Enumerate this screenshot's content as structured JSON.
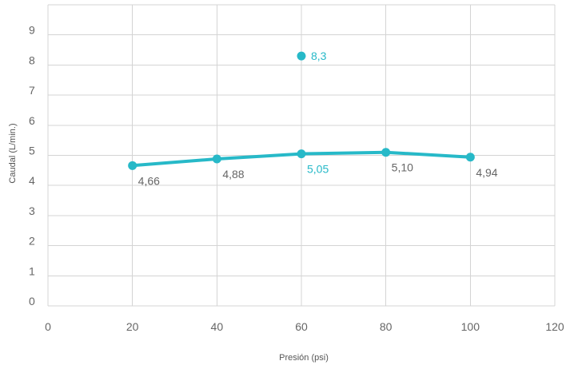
{
  "chart_data": {
    "type": "line",
    "title": "",
    "xlabel": "Presión (psi)",
    "ylabel": "Caudal (L/min.)",
    "xlim": [
      0,
      120
    ],
    "ylim": [
      0,
      10
    ],
    "x_ticks": [
      0,
      20,
      40,
      60,
      80,
      100,
      120
    ],
    "y_ticks": [
      0,
      1,
      2,
      3,
      4,
      5,
      6,
      7,
      8,
      9
    ],
    "x_tick_labels": [
      "0",
      "20",
      "40",
      "60",
      "80",
      "100",
      "120"
    ],
    "y_tick_labels": [
      "0",
      "1",
      "2",
      "3",
      "4",
      "5",
      "6",
      "7",
      "8",
      "9"
    ],
    "grid": true,
    "series": [
      {
        "type": "line",
        "color": "#27b9c8",
        "label_color": "#666666",
        "points": [
          {
            "x": 20,
            "y": 4.66,
            "label": "4,66"
          },
          {
            "x": 40,
            "y": 4.88,
            "label": "4,88"
          },
          {
            "x": 60,
            "y": 5.05,
            "label": "5,05",
            "label_color": "#27b9c8"
          },
          {
            "x": 80,
            "y": 5.1,
            "label": "5,10"
          },
          {
            "x": 100,
            "y": 4.94,
            "label": "4,94"
          }
        ]
      },
      {
        "type": "scatter",
        "color": "#27b9c8",
        "label_color": "#27b9c8",
        "points": [
          {
            "x": 60,
            "y": 8.3,
            "label": "8,3"
          }
        ]
      }
    ]
  }
}
